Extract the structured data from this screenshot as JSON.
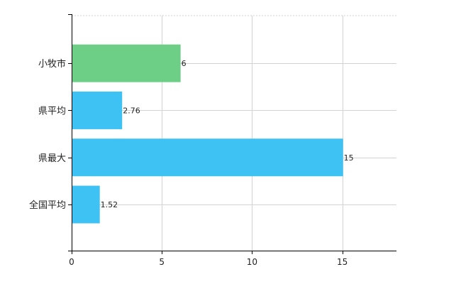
{
  "chart_data": {
    "type": "bar",
    "orientation": "horizontal",
    "title": "",
    "xlabel": "",
    "ylabel": "",
    "categories": [
      "小牧市",
      "県平均",
      "県最大",
      "全国平均"
    ],
    "values": [
      6,
      2.76,
      15,
      1.52
    ],
    "data_labels": [
      "6",
      "2.76",
      "15",
      "1.52"
    ],
    "bar_colors": [
      "#6ccf85",
      "#3ec1f3",
      "#3ec1f3",
      "#3ec1f3"
    ],
    "xlim": [
      0,
      18
    ],
    "x_ticks": [
      0,
      5,
      10,
      15
    ],
    "x_tick_labels": [
      "0",
      "5",
      "10",
      "15"
    ],
    "grid": true,
    "gridline_color": "#d3d3d3",
    "axis_color": "#000000"
  }
}
